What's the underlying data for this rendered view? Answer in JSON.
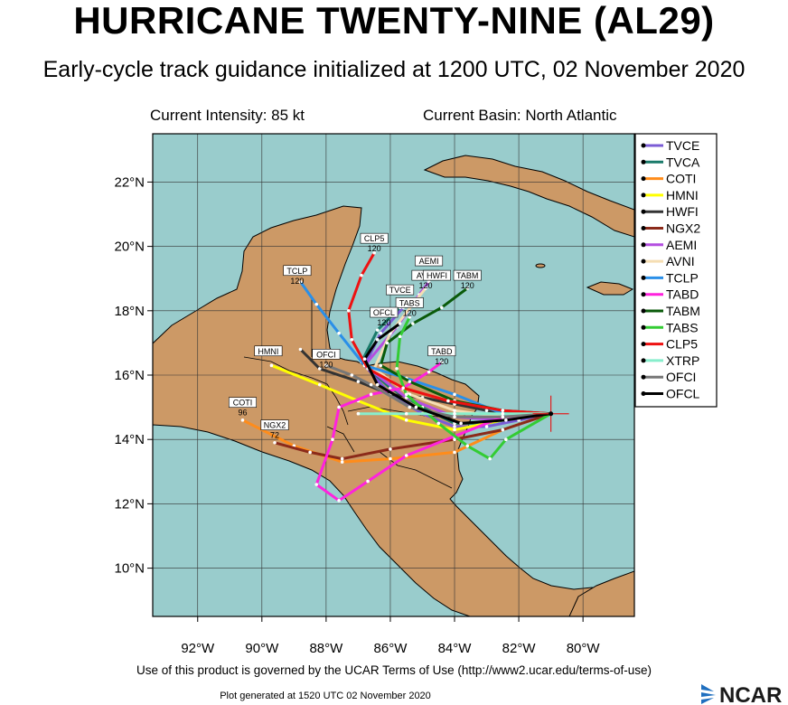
{
  "header": {
    "title": "HURRICANE TWENTY-NINE (AL29)",
    "subtitle": "Early-cycle track guidance initialized at 1200 UTC, 02 November 2020",
    "current_intensity": "Current Intensity: 85 kt",
    "current_basin": "Current Basin: North Atlantic"
  },
  "map": {
    "lat_labels": [
      "22°N",
      "20°N",
      "18°N",
      "16°N",
      "14°N",
      "12°N",
      "10°N"
    ],
    "lon_labels": [
      "92°W",
      "90°W",
      "88°W",
      "86°W",
      "84°W",
      "82°W",
      "80°W"
    ],
    "colors": {
      "ocean": "#99cccc",
      "land": "#cc9966",
      "border": "#000000"
    }
  },
  "legend": [
    {
      "name": "TVCE",
      "color": "#7b5cd6"
    },
    {
      "name": "TVCA",
      "color": "#1a7a6a"
    },
    {
      "name": "COTI",
      "color": "#ff8c1a"
    },
    {
      "name": "HMNI",
      "color": "#ffff00"
    },
    {
      "name": "HWFI",
      "color": "#333333"
    },
    {
      "name": "NGX2",
      "color": "#8b2a1a"
    },
    {
      "name": "AEMI",
      "color": "#b44ee0"
    },
    {
      "name": "AVNI",
      "color": "#f5deb3"
    },
    {
      "name": "TCLP",
      "color": "#2a8fe8"
    },
    {
      "name": "TABD",
      "color": "#ff22dd"
    },
    {
      "name": "TABM",
      "color": "#0a5a0a"
    },
    {
      "name": "TABS",
      "color": "#33cc33"
    },
    {
      "name": "CLP5",
      "color": "#ee1111"
    },
    {
      "name": "XTRP",
      "color": "#88eecc"
    },
    {
      "name": "OFCI",
      "color": "#777777"
    },
    {
      "name": "OFCL",
      "color": "#000000"
    }
  ],
  "tracks": [
    {
      "name": "TVCE",
      "color": "#7b5cd6",
      "label": "TVCE",
      "points": [
        [
          -81,
          14.8
        ],
        [
          -82,
          14.6
        ],
        [
          -83,
          14.4
        ],
        [
          -84,
          14.4
        ],
        [
          -85,
          14.8
        ],
        [
          -86,
          15.4
        ],
        [
          -86.8,
          16.3
        ],
        [
          -86.3,
          17.3
        ],
        [
          -85.6,
          18.1
        ]
      ]
    },
    {
      "name": "TVCA",
      "color": "#1a7a6a",
      "label": "",
      "points": [
        [
          -81,
          14.8
        ],
        [
          -82,
          14.7
        ],
        [
          -83,
          14.5
        ],
        [
          -84,
          14.5
        ],
        [
          -85,
          15.0
        ],
        [
          -86,
          15.6
        ],
        [
          -86.9,
          16.4
        ],
        [
          -86.4,
          17.4
        ],
        [
          -85.7,
          18.1
        ]
      ]
    },
    {
      "name": "COTI",
      "color": "#ff8c1a",
      "label": "COTI",
      "points": [
        [
          -81,
          14.8
        ],
        [
          -82.5,
          14.3
        ],
        [
          -84,
          13.6
        ],
        [
          -86,
          13.4
        ],
        [
          -87.5,
          13.3
        ],
        [
          -89,
          13.8
        ],
        [
          -90.6,
          14.6
        ]
      ]
    },
    {
      "name": "HMNI",
      "color": "#ffff00",
      "label": "HMNI",
      "points": [
        [
          -81,
          14.8
        ],
        [
          -82.5,
          14.6
        ],
        [
          -84,
          14.3
        ],
        [
          -85.5,
          14.6
        ],
        [
          -87,
          15.2
        ],
        [
          -88.2,
          15.7
        ],
        [
          -89.7,
          16.3
        ]
      ]
    },
    {
      "name": "HWFI",
      "color": "#333333",
      "label": "",
      "points": [
        [
          -81,
          14.8
        ],
        [
          -82,
          14.8
        ],
        [
          -83,
          14.9
        ],
        [
          -84,
          15.1
        ],
        [
          -85,
          15.3
        ],
        [
          -86,
          15.4
        ],
        [
          -87,
          15.8
        ],
        [
          -88.2,
          16.2
        ],
        [
          -88.8,
          16.8
        ]
      ]
    },
    {
      "name": "NGX2",
      "color": "#8b2a1a",
      "label": "NGX2",
      "points": [
        [
          -81,
          14.8
        ],
        [
          -82.5,
          14.3
        ],
        [
          -84,
          14.0
        ],
        [
          -86,
          13.7
        ],
        [
          -87.5,
          13.4
        ],
        [
          -88.5,
          13.6
        ],
        [
          -89.6,
          13.9
        ]
      ]
    },
    {
      "name": "AEMI",
      "color": "#b44ee0",
      "label": "AEMI",
      "points": [
        [
          -81,
          14.8
        ],
        [
          -82.5,
          14.6
        ],
        [
          -84,
          14.7
        ],
        [
          -85.5,
          15.3
        ],
        [
          -86.8,
          16.3
        ],
        [
          -85.8,
          17.5
        ],
        [
          -85.1,
          18.5
        ],
        [
          -84.8,
          18.9
        ]
      ]
    },
    {
      "name": "AVNI",
      "color": "#f5deb3",
      "label": "AVNI",
      "points": [
        [
          -81,
          14.8
        ],
        [
          -82.5,
          14.7
        ],
        [
          -84,
          14.9
        ],
        [
          -85.4,
          15.4
        ],
        [
          -86.5,
          16.2
        ],
        [
          -86.0,
          17.3
        ],
        [
          -85.3,
          18.2
        ],
        [
          -84.9,
          18.7
        ]
      ]
    },
    {
      "name": "TCLP",
      "color": "#2a8fe8",
      "label": "TCLP",
      "points": [
        [
          -81,
          14.8
        ],
        [
          -82.5,
          14.8
        ],
        [
          -84,
          15.4
        ],
        [
          -85.5,
          15.9
        ],
        [
          -86.8,
          16.3
        ],
        [
          -87.6,
          17.3
        ],
        [
          -88.3,
          18.2
        ],
        [
          -88.8,
          18.9
        ]
      ]
    },
    {
      "name": "TABD",
      "color": "#ff22dd",
      "label": "TABD",
      "points": [
        [
          -81,
          14.8
        ],
        [
          -82.5,
          14.7
        ],
        [
          -84,
          14.1
        ],
        [
          -85.5,
          13.5
        ],
        [
          -86.7,
          12.7
        ],
        [
          -87.6,
          12.1
        ],
        [
          -88.3,
          12.6
        ],
        [
          -87.8,
          14.0
        ],
        [
          -87.6,
          15.0
        ],
        [
          -86.6,
          15.4
        ],
        [
          -85.6,
          15.6
        ],
        [
          -84.8,
          16.1
        ],
        [
          -84.4,
          16.4
        ]
      ]
    },
    {
      "name": "TABM",
      "color": "#0a5a0a",
      "label": "TABM",
      "points": [
        [
          -81,
          14.8
        ],
        [
          -82.5,
          14.9
        ],
        [
          -84.0,
          15.2
        ],
        [
          -85.4,
          15.8
        ],
        [
          -86.3,
          16.3
        ],
        [
          -86.1,
          17.0
        ],
        [
          -85.3,
          17.6
        ],
        [
          -84.4,
          18.1
        ],
        [
          -83.6,
          18.7
        ]
      ]
    },
    {
      "name": "TABS",
      "color": "#33cc33",
      "label": "TABS",
      "points": [
        [
          -81,
          14.8
        ],
        [
          -82.4,
          14.0
        ],
        [
          -82.9,
          13.4
        ],
        [
          -83.6,
          13.8
        ],
        [
          -84.5,
          14.5
        ],
        [
          -85.5,
          15.4
        ],
        [
          -85.8,
          16.2
        ],
        [
          -85.7,
          17.2
        ],
        [
          -85.4,
          17.8
        ]
      ]
    },
    {
      "name": "CLP5",
      "color": "#ee1111",
      "label": "CLP5",
      "points": [
        [
          -81,
          14.8
        ],
        [
          -82.5,
          14.9
        ],
        [
          -84.2,
          15.2
        ],
        [
          -85.6,
          15.6
        ],
        [
          -86.7,
          16.2
        ],
        [
          -87.2,
          17.1
        ],
        [
          -87.3,
          18.0
        ],
        [
          -86.9,
          19.1
        ],
        [
          -86.5,
          19.8
        ]
      ]
    },
    {
      "name": "XTRP",
      "color": "#88eecc",
      "label": "",
      "points": [
        [
          -81,
          14.8
        ],
        [
          -82.5,
          14.8
        ],
        [
          -84,
          14.8
        ],
        [
          -85.5,
          14.8
        ],
        [
          -87.0,
          14.8
        ]
      ]
    },
    {
      "name": "OFCI",
      "color": "#777777",
      "label": "OFCI",
      "points": [
        [
          -81,
          14.8
        ],
        [
          -82.5,
          14.7
        ],
        [
          -84,
          14.7
        ],
        [
          -85.4,
          15.0
        ],
        [
          -86.6,
          15.7
        ],
        [
          -87.2,
          16.0
        ],
        [
          -88.0,
          16.3
        ]
      ]
    },
    {
      "name": "OFCL",
      "color": "#000000",
      "label": "OFCL",
      "points": [
        [
          -81,
          14.8
        ],
        [
          -82.4,
          14.6
        ],
        [
          -83.8,
          14.5
        ],
        [
          -85.2,
          15.0
        ],
        [
          -86.4,
          15.7
        ],
        [
          -86.8,
          16.5
        ],
        [
          -86.4,
          17.1
        ],
        [
          -85.7,
          17.6
        ]
      ]
    }
  ],
  "track_labels": [
    {
      "text": "CLP5",
      "num": "120",
      "lon": -86.5,
      "lat": 19.9
    },
    {
      "text": "TCLP",
      "num": "120",
      "lon": -88.9,
      "lat": 18.9
    },
    {
      "text": "AEMI",
      "num": "",
      "lon": -84.8,
      "lat": 19.2
    },
    {
      "text": "AVNI",
      "num": "120",
      "lon": -84.9,
      "lat": 18.75
    },
    {
      "text": "HWFI",
      "num": "",
      "lon": -84.55,
      "lat": 18.75
    },
    {
      "text": "TABM",
      "num": "120",
      "lon": -83.6,
      "lat": 18.75
    },
    {
      "text": "TVCE",
      "num": "",
      "lon": -85.7,
      "lat": 18.3
    },
    {
      "text": "TABS",
      "num": "120",
      "lon": -85.4,
      "lat": 17.9
    },
    {
      "text": "OFCL",
      "num": "120",
      "lon": -86.2,
      "lat": 17.6
    },
    {
      "text": "TABD",
      "num": "120",
      "lon": -84.4,
      "lat": 16.4
    },
    {
      "text": "OFCI",
      "num": "120",
      "lon": -88.0,
      "lat": 16.3
    },
    {
      "text": "HMNI",
      "num": "",
      "lon": -89.8,
      "lat": 16.4
    },
    {
      "text": "COTI",
      "num": "96",
      "lon": -90.6,
      "lat": 14.8
    },
    {
      "text": "NGX2",
      "num": "72",
      "lon": -89.6,
      "lat": 14.1
    }
  ],
  "storm_position": {
    "lon": -81.0,
    "lat": 14.8
  },
  "footer": {
    "terms": "Use of this product is governed by the UCAR Terms of Use (http://www2.ucar.edu/terms-of-use)",
    "plot_generated": "Plot generated at 1520 UTC   02 November 2020",
    "logo_text": "NCAR"
  }
}
